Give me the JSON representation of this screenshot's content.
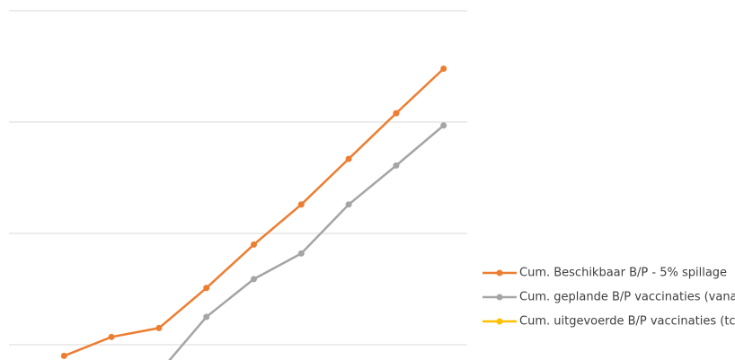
{
  "chart_data": {
    "type": "line",
    "categories": [
      null,
      null,
      null,
      null,
      null,
      null,
      null,
      null,
      null,
      null
    ],
    "series": [
      {
        "name": "Cum. Beschikbaar B/P - 5% spillage",
        "color": "#ed7d31",
        "values": [
          null,
          -0.1,
          0.07,
          0.15,
          0.51,
          0.9,
          1.26,
          1.67,
          2.08,
          2.48
        ]
      },
      {
        "name": "Cum. geplande B/P vaccinaties (vana",
        "color": "#a5a5a5",
        "values": [
          null,
          null,
          null,
          -0.25,
          0.25,
          0.59,
          0.82,
          1.26,
          1.61,
          1.97
        ]
      },
      {
        "name": "Cum. uitgevoerde B/P vaccinaties (tc",
        "color": "#ffc000",
        "values": [
          null,
          null,
          null,
          null,
          null,
          null,
          null,
          null,
          null,
          null
        ]
      }
    ],
    "ylim": [
      -0.137,
      3.097
    ],
    "yticks": [
      0,
      1,
      2,
      3
    ],
    "grid": true
  }
}
